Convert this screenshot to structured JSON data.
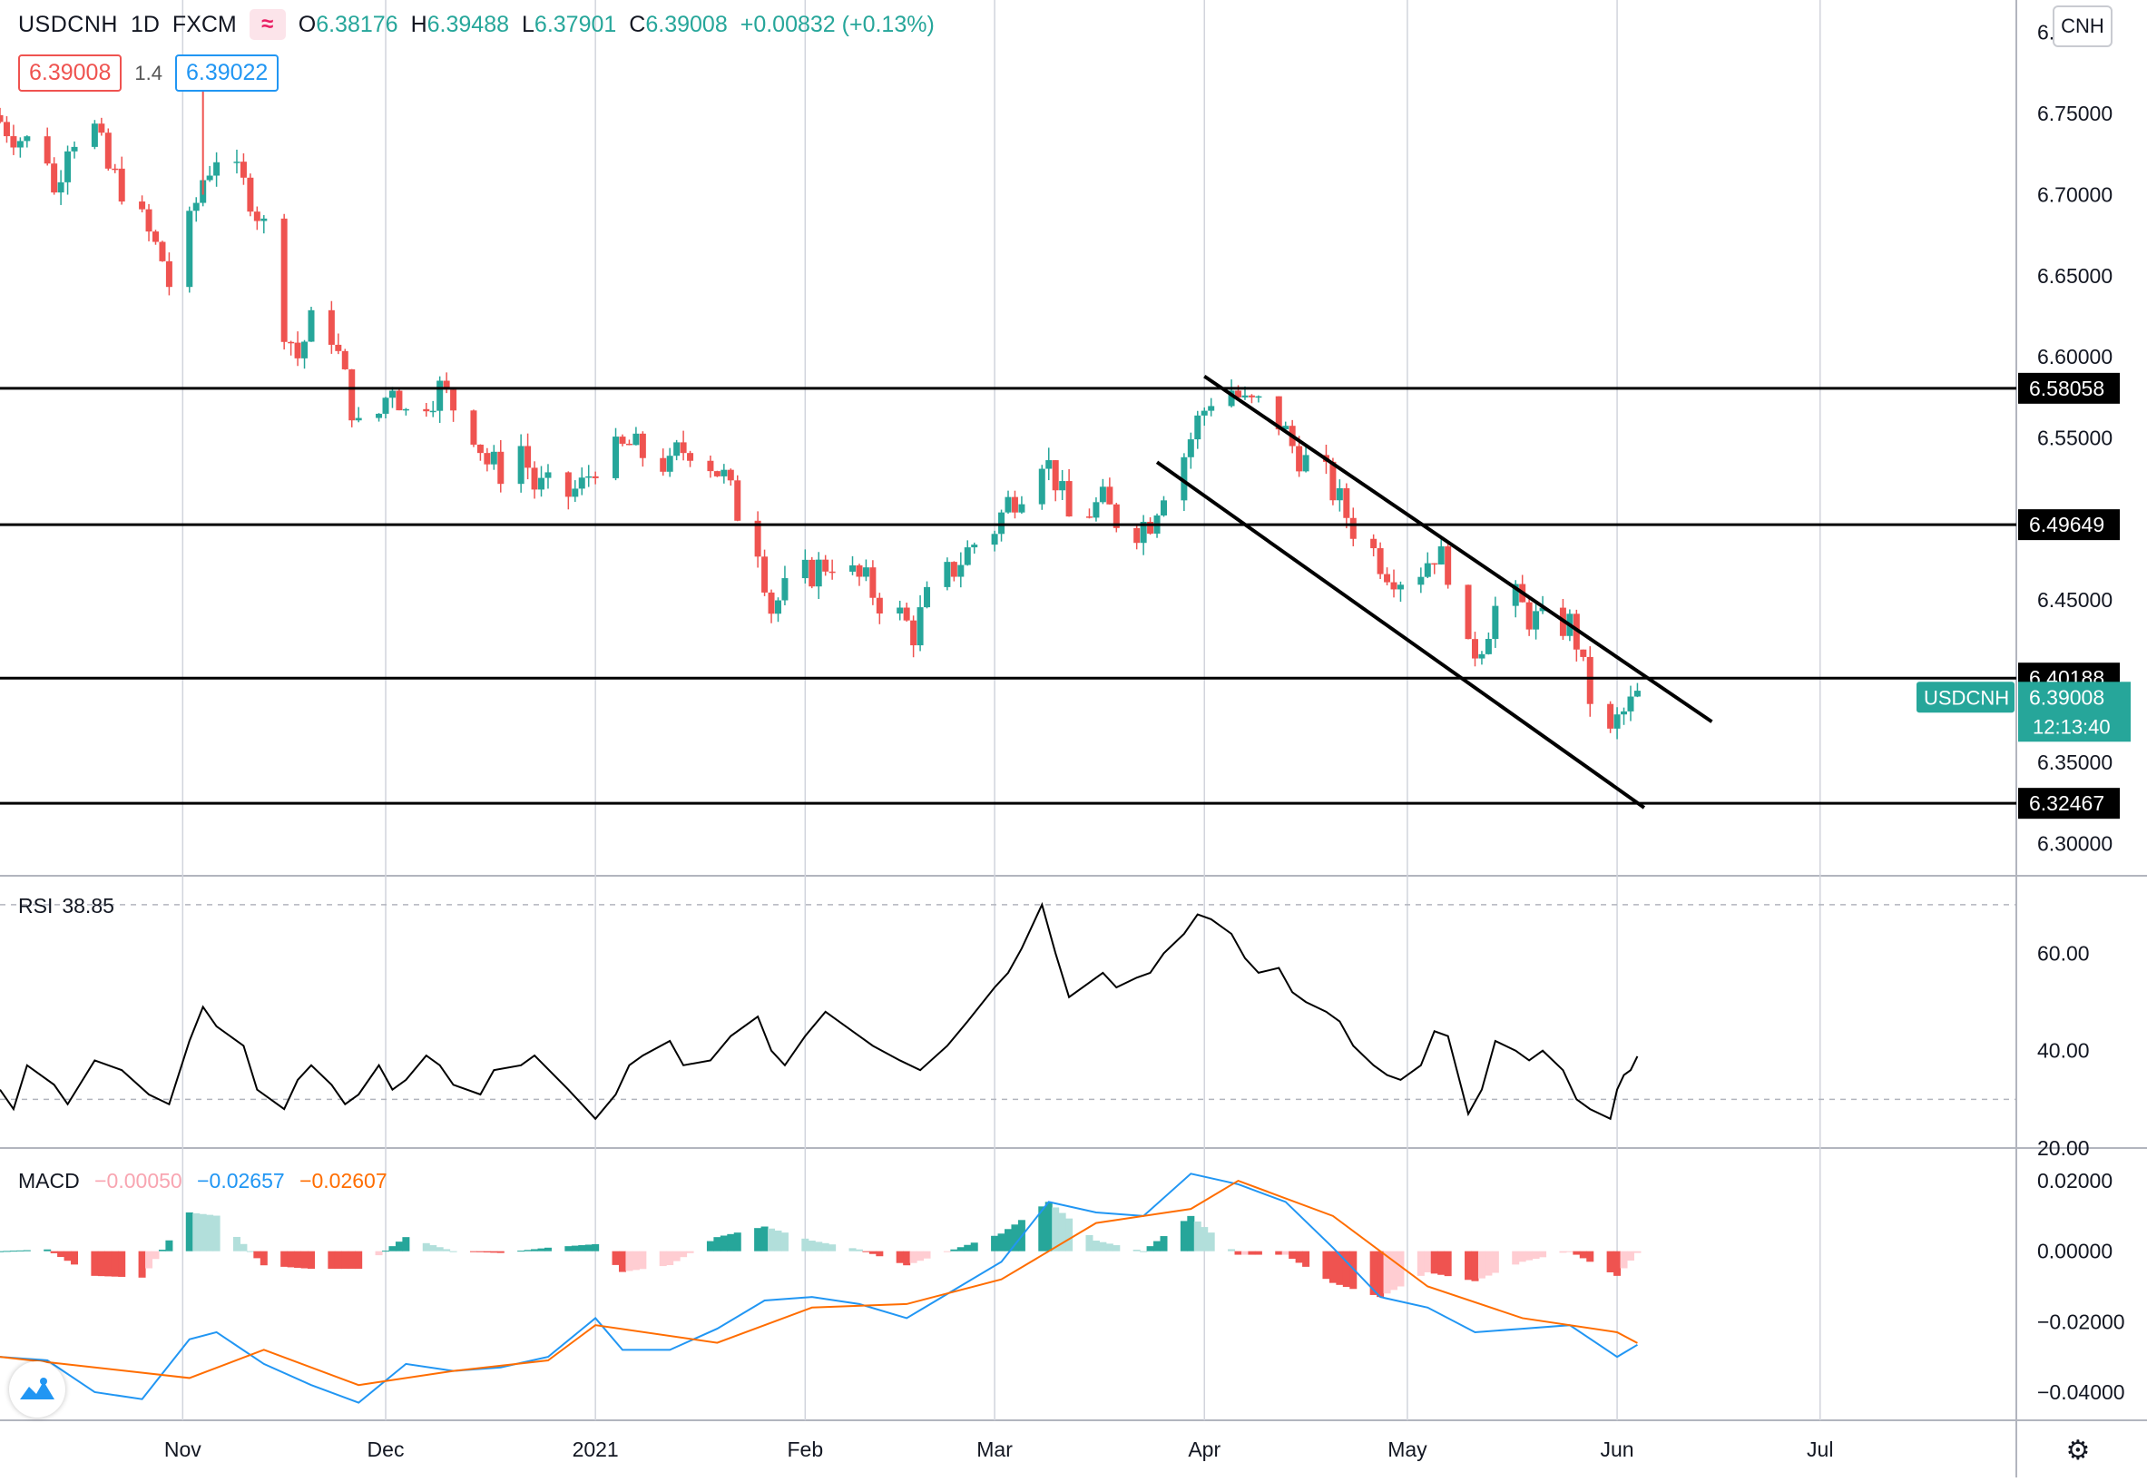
{
  "header": {
    "symbol": "USDCNH",
    "interval": "1D",
    "source": "FXCM",
    "indicator_icon": "wave-icon",
    "open_label": "O",
    "open": "6.38176",
    "high_label": "H",
    "high": "6.39488",
    "low_label": "L",
    "low": "6.37901",
    "close_label": "C",
    "close": "6.39008",
    "change": "+0.00832 (+0.13%)",
    "bid": "6.39008",
    "spread": "1.4",
    "ask": "6.39022",
    "currency_button": "CNH"
  },
  "rsi_pane": {
    "label": "RSI",
    "value": "38.85"
  },
  "macd_pane": {
    "label": "MACD",
    "histogram": "−0.00050",
    "macd": "−0.02657",
    "signal": "−0.02607"
  },
  "colors": {
    "up": "#26a69a",
    "down": "#ef5350",
    "grid": "#d1d4dc",
    "line": "#000000",
    "macd_line": "#2196f3",
    "signal_line": "#ff6d00",
    "hist_up": "#26a69a",
    "hist_up_light": "#b2dfdb",
    "hist_down": "#ef5350",
    "hist_down_light": "#ffcdd2",
    "last_price": "#26a69a"
  },
  "chart_data": {
    "type": "candlestick",
    "symbol": "USDCNH",
    "price_axis": {
      "min": 6.28,
      "max": 6.82,
      "ticks": [
        6.3,
        6.35,
        6.4,
        6.45,
        6.5,
        6.55,
        6.6,
        6.65,
        6.7,
        6.75,
        6.8
      ],
      "tick_labels": [
        "6.30000",
        "6.35000",
        "6.40000",
        "6.45000",
        "6.50000",
        "6.55000",
        "6.60000",
        "6.65000",
        "6.70000",
        "6.75000",
        "6.80000"
      ]
    },
    "time_axis": {
      "start": "2020-10-05",
      "end": "2021-07-30",
      "labels": [
        {
          "date": "2020-11-01",
          "text": "Nov"
        },
        {
          "date": "2020-12-01",
          "text": "Dec"
        },
        {
          "date": "2021-01-01",
          "text": "2021"
        },
        {
          "date": "2021-02-01",
          "text": "Feb"
        },
        {
          "date": "2021-03-01",
          "text": "Mar"
        },
        {
          "date": "2021-04-01",
          "text": "Apr"
        },
        {
          "date": "2021-05-01",
          "text": "May"
        },
        {
          "date": "2021-06-01",
          "text": "Jun"
        },
        {
          "date": "2021-07-01",
          "text": "Jul"
        }
      ]
    },
    "close_path": [
      [
        "2020-10-05",
        6.745
      ],
      [
        "2020-10-08",
        6.735
      ],
      [
        "2020-10-12",
        6.725
      ],
      [
        "2020-10-13",
        6.7
      ],
      [
        "2020-10-15",
        6.735
      ],
      [
        "2020-10-19",
        6.74
      ],
      [
        "2020-10-21",
        6.715
      ],
      [
        "2020-10-23",
        6.705
      ],
      [
        "2020-10-27",
        6.675
      ],
      [
        "2020-10-29",
        6.66
      ],
      [
        "2020-10-30",
        6.645
      ],
      [
        "2020-11-02",
        6.68
      ],
      [
        "2020-11-04",
        6.71
      ],
      [
        "2020-11-06",
        6.725
      ],
      [
        "2020-11-09",
        6.71
      ],
      [
        "2020-11-11",
        6.7
      ],
      [
        "2020-11-13",
        6.68
      ],
      [
        "2020-11-16",
        6.62
      ],
      [
        "2020-11-18",
        6.6
      ],
      [
        "2020-11-20",
        6.62
      ],
      [
        "2020-11-23",
        6.615
      ],
      [
        "2020-11-25",
        6.585
      ],
      [
        "2020-11-27",
        6.555
      ],
      [
        "2020-11-30",
        6.565
      ],
      [
        "2020-12-02",
        6.585
      ],
      [
        "2020-12-04",
        6.565
      ],
      [
        "2020-12-07",
        6.575
      ],
      [
        "2020-12-09",
        6.58
      ],
      [
        "2020-12-11",
        6.57
      ],
      [
        "2020-12-14",
        6.555
      ],
      [
        "2020-12-16",
        6.535
      ],
      [
        "2020-12-18",
        6.53
      ],
      [
        "2020-12-21",
        6.545
      ],
      [
        "2020-12-23",
        6.52
      ],
      [
        "2020-12-28",
        6.515
      ],
      [
        "2020-12-30",
        6.52
      ],
      [
        "2021-01-01",
        6.535
      ],
      [
        "2021-01-04",
        6.54
      ],
      [
        "2021-01-06",
        6.545
      ],
      [
        "2021-01-08",
        6.54
      ],
      [
        "2021-01-11",
        6.535
      ],
      [
        "2021-01-12",
        6.53
      ],
      [
        "2021-01-13",
        6.54
      ],
      [
        "2021-01-15",
        6.545
      ],
      [
        "2021-01-18",
        6.535
      ],
      [
        "2021-01-20",
        6.525
      ],
      [
        "2021-01-22",
        6.505
      ],
      [
        "2021-01-25",
        6.485
      ],
      [
        "2021-01-27",
        6.445
      ],
      [
        "2021-01-29",
        6.455
      ],
      [
        "2021-02-01",
        6.465
      ],
      [
        "2021-02-03",
        6.47
      ],
      [
        "2021-02-05",
        6.475
      ],
      [
        "2021-02-08",
        6.465
      ],
      [
        "2021-02-10",
        6.46
      ],
      [
        "2021-02-12",
        6.45
      ],
      [
        "2021-02-15",
        6.44
      ],
      [
        "2021-02-17",
        6.43
      ],
      [
        "2021-02-19",
        6.45
      ],
      [
        "2021-02-22",
        6.465
      ],
      [
        "2021-02-24",
        6.475
      ],
      [
        "2021-02-26",
        6.485
      ],
      [
        "2021-03-01",
        6.495
      ],
      [
        "2021-03-03",
        6.51
      ],
      [
        "2021-03-05",
        6.52
      ],
      [
        "2021-03-08",
        6.54
      ],
      [
        "2021-03-10",
        6.525
      ],
      [
        "2021-03-12",
        6.5
      ],
      [
        "2021-03-15",
        6.505
      ],
      [
        "2021-03-17",
        6.51
      ],
      [
        "2021-03-19",
        6.5
      ],
      [
        "2021-03-22",
        6.495
      ],
      [
        "2021-03-24",
        6.5
      ],
      [
        "2021-03-26",
        6.52
      ],
      [
        "2021-03-29",
        6.54
      ],
      [
        "2021-03-31",
        6.56
      ],
      [
        "2021-04-02",
        6.575
      ],
      [
        "2021-04-05",
        6.58
      ],
      [
        "2021-04-07",
        6.57
      ],
      [
        "2021-04-09",
        6.57
      ],
      [
        "2021-04-12",
        6.56
      ],
      [
        "2021-04-14",
        6.545
      ],
      [
        "2021-04-16",
        6.535
      ],
      [
        "2021-04-19",
        6.525
      ],
      [
        "2021-04-21",
        6.51
      ],
      [
        "2021-04-23",
        6.495
      ],
      [
        "2021-04-26",
        6.48
      ],
      [
        "2021-04-28",
        6.47
      ],
      [
        "2021-04-30",
        6.465
      ],
      [
        "2021-05-03",
        6.47
      ],
      [
        "2021-05-05",
        6.48
      ],
      [
        "2021-05-07",
        6.47
      ],
      [
        "2021-05-10",
        6.415
      ],
      [
        "2021-05-12",
        6.425
      ],
      [
        "2021-05-14",
        6.445
      ],
      [
        "2021-05-17",
        6.45
      ],
      [
        "2021-05-19",
        6.44
      ],
      [
        "2021-05-21",
        6.435
      ],
      [
        "2021-05-24",
        6.435
      ],
      [
        "2021-05-25",
        6.435
      ],
      [
        "2021-05-26",
        6.425
      ],
      [
        "2021-05-27",
        6.405
      ],
      [
        "2021-05-28",
        6.39
      ],
      [
        "2021-05-31",
        6.365
      ],
      [
        "2021-06-01",
        6.375
      ],
      [
        "2021-06-02",
        6.38
      ],
      [
        "2021-06-03",
        6.385
      ],
      [
        "2021-06-04",
        6.39
      ]
    ],
    "spike_high": {
      "date": "2020-11-04",
      "high": 6.775
    },
    "last_price": 6.39008,
    "last_price_label": "USDCNH",
    "last_price_value": "6.39008",
    "countdown": "12:13:40",
    "horizontal_levels": [
      {
        "value": 6.58058,
        "label": "6.58058"
      },
      {
        "value": 6.49649,
        "label": "6.49649"
      },
      {
        "value": 6.40188,
        "label": "6.40188"
      },
      {
        "value": 6.32467,
        "label": "6.32467"
      }
    ],
    "trend_channel": [
      {
        "x1": "2021-04-01",
        "y1": 6.588,
        "x2": "2021-06-15",
        "y2": 6.375
      },
      {
        "x1": "2021-03-25",
        "y1": 6.535,
        "x2": "2021-06-05",
        "y2": 6.322
      }
    ],
    "rsi": {
      "axis": {
        "min": 20,
        "max": 75,
        "ticks": [
          20,
          40,
          60
        ],
        "tick_labels": [
          "20.00",
          "40.00",
          "60.00"
        ],
        "bands": [
          30,
          70
        ]
      },
      "points": [
        [
          "2020-10-05",
          32
        ],
        [
          "2020-10-07",
          28
        ],
        [
          "2020-10-09",
          37
        ],
        [
          "2020-10-13",
          33
        ],
        [
          "2020-10-15",
          29
        ],
        [
          "2020-10-19",
          38
        ],
        [
          "2020-10-23",
          36
        ],
        [
          "2020-10-27",
          31
        ],
        [
          "2020-10-30",
          29
        ],
        [
          "2020-11-02",
          42
        ],
        [
          "2020-11-04",
          49
        ],
        [
          "2020-11-06",
          45
        ],
        [
          "2020-11-10",
          41
        ],
        [
          "2020-11-12",
          32
        ],
        [
          "2020-11-16",
          28
        ],
        [
          "2020-11-18",
          34
        ],
        [
          "2020-11-20",
          37
        ],
        [
          "2020-11-23",
          33
        ],
        [
          "2020-11-25",
          29
        ],
        [
          "2020-11-27",
          31
        ],
        [
          "2020-11-30",
          37
        ],
        [
          "2020-12-02",
          32
        ],
        [
          "2020-12-04",
          34
        ],
        [
          "2020-12-07",
          39
        ],
        [
          "2020-12-09",
          37
        ],
        [
          "2020-12-11",
          33
        ],
        [
          "2020-12-15",
          31
        ],
        [
          "2020-12-17",
          36
        ],
        [
          "2020-12-21",
          37
        ],
        [
          "2020-12-23",
          39
        ],
        [
          "2020-12-28",
          32
        ],
        [
          "2020-12-30",
          29
        ],
        [
          "2021-01-01",
          26
        ],
        [
          "2021-01-04",
          31
        ],
        [
          "2021-01-06",
          37
        ],
        [
          "2021-01-08",
          39
        ],
        [
          "2021-01-12",
          42
        ],
        [
          "2021-01-14",
          37
        ],
        [
          "2021-01-18",
          38
        ],
        [
          "2021-01-21",
          43
        ],
        [
          "2021-01-25",
          47
        ],
        [
          "2021-01-27",
          40
        ],
        [
          "2021-01-29",
          37
        ],
        [
          "2021-02-01",
          43
        ],
        [
          "2021-02-04",
          48
        ],
        [
          "2021-02-08",
          44
        ],
        [
          "2021-02-11",
          41
        ],
        [
          "2021-02-15",
          38
        ],
        [
          "2021-02-18",
          36
        ],
        [
          "2021-02-22",
          41
        ],
        [
          "2021-02-25",
          46
        ],
        [
          "2021-03-01",
          53
        ],
        [
          "2021-03-03",
          56
        ],
        [
          "2021-03-05",
          61
        ],
        [
          "2021-03-08",
          70
        ],
        [
          "2021-03-10",
          60
        ],
        [
          "2021-03-12",
          51
        ],
        [
          "2021-03-15",
          54
        ],
        [
          "2021-03-17",
          56
        ],
        [
          "2021-03-19",
          53
        ],
        [
          "2021-03-22",
          55
        ],
        [
          "2021-03-24",
          56
        ],
        [
          "2021-03-26",
          60
        ],
        [
          "2021-03-29",
          64
        ],
        [
          "2021-03-31",
          68
        ],
        [
          "2021-04-02",
          67
        ],
        [
          "2021-04-05",
          64
        ],
        [
          "2021-04-07",
          59
        ],
        [
          "2021-04-09",
          56
        ],
        [
          "2021-04-12",
          57
        ],
        [
          "2021-04-14",
          52
        ],
        [
          "2021-04-16",
          50
        ],
        [
          "2021-04-19",
          48
        ],
        [
          "2021-04-21",
          46
        ],
        [
          "2021-04-23",
          41
        ],
        [
          "2021-04-26",
          37
        ],
        [
          "2021-04-28",
          35
        ],
        [
          "2021-04-30",
          34
        ],
        [
          "2021-05-03",
          37
        ],
        [
          "2021-05-05",
          44
        ],
        [
          "2021-05-07",
          43
        ],
        [
          "2021-05-10",
          27
        ],
        [
          "2021-05-12",
          32
        ],
        [
          "2021-05-14",
          42
        ],
        [
          "2021-05-17",
          40
        ],
        [
          "2021-05-19",
          38
        ],
        [
          "2021-05-21",
          40
        ],
        [
          "2021-05-24",
          36
        ],
        [
          "2021-05-26",
          30
        ],
        [
          "2021-05-28",
          28
        ],
        [
          "2021-05-31",
          26
        ],
        [
          "2021-06-01",
          32
        ],
        [
          "2021-06-02",
          35
        ],
        [
          "2021-06-03",
          36
        ],
        [
          "2021-06-04",
          38.85
        ]
      ]
    },
    "macd": {
      "axis": {
        "min": -0.048,
        "max": 0.028,
        "ticks": [
          -0.04,
          -0.02,
          0,
          0.02
        ],
        "tick_labels": [
          "−0.04000",
          "−0.02000",
          "0.00000",
          "0.02000"
        ]
      },
      "macd_line": [
        [
          "2020-10-05",
          -0.03
        ],
        [
          "2020-10-12",
          -0.031
        ],
        [
          "2020-10-19",
          -0.04
        ],
        [
          "2020-10-26",
          -0.042
        ],
        [
          "2020-11-02",
          -0.025
        ],
        [
          "2020-11-06",
          -0.023
        ],
        [
          "2020-11-13",
          -0.032
        ],
        [
          "2020-11-20",
          -0.038
        ],
        [
          "2020-11-27",
          -0.043
        ],
        [
          "2020-12-04",
          -0.032
        ],
        [
          "2020-12-11",
          -0.034
        ],
        [
          "2020-12-18",
          -0.033
        ],
        [
          "2020-12-25",
          -0.03
        ],
        [
          "2021-01-01",
          -0.019
        ],
        [
          "2021-01-05",
          -0.028
        ],
        [
          "2021-01-12",
          -0.028
        ],
        [
          "2021-01-19",
          -0.022
        ],
        [
          "2021-01-26",
          -0.014
        ],
        [
          "2021-02-02",
          -0.013
        ],
        [
          "2021-02-09",
          -0.015
        ],
        [
          "2021-02-16",
          -0.019
        ],
        [
          "2021-02-23",
          -0.011
        ],
        [
          "2021-03-02",
          -0.003
        ],
        [
          "2021-03-09",
          0.014
        ],
        [
          "2021-03-16",
          0.011
        ],
        [
          "2021-03-23",
          0.01
        ],
        [
          "2021-03-30",
          0.022
        ],
        [
          "2021-04-06",
          0.019
        ],
        [
          "2021-04-13",
          0.014
        ],
        [
          "2021-04-20",
          0.001
        ],
        [
          "2021-04-27",
          -0.013
        ],
        [
          "2021-05-04",
          -0.016
        ],
        [
          "2021-05-11",
          -0.023
        ],
        [
          "2021-05-18",
          -0.022
        ],
        [
          "2021-05-25",
          -0.021
        ],
        [
          "2021-06-01",
          -0.03
        ],
        [
          "2021-06-04",
          -0.02657
        ]
      ],
      "signal_line": [
        [
          "2020-10-05",
          -0.03
        ],
        [
          "2020-10-19",
          -0.033
        ],
        [
          "2020-11-02",
          -0.036
        ],
        [
          "2020-11-13",
          -0.028
        ],
        [
          "2020-11-27",
          -0.038
        ],
        [
          "2020-12-11",
          -0.034
        ],
        [
          "2020-12-25",
          -0.031
        ],
        [
          "2021-01-01",
          -0.021
        ],
        [
          "2021-01-19",
          -0.026
        ],
        [
          "2021-02-02",
          -0.016
        ],
        [
          "2021-02-16",
          -0.015
        ],
        [
          "2021-03-02",
          -0.008
        ],
        [
          "2021-03-16",
          0.008
        ],
        [
          "2021-03-30",
          0.012
        ],
        [
          "2021-04-06",
          0.02
        ],
        [
          "2021-04-20",
          0.01
        ],
        [
          "2021-05-04",
          -0.01
        ],
        [
          "2021-05-18",
          -0.019
        ],
        [
          "2021-06-01",
          -0.023
        ],
        [
          "2021-06-04",
          -0.02607
        ]
      ],
      "histogram_value": -0.0005
    }
  }
}
